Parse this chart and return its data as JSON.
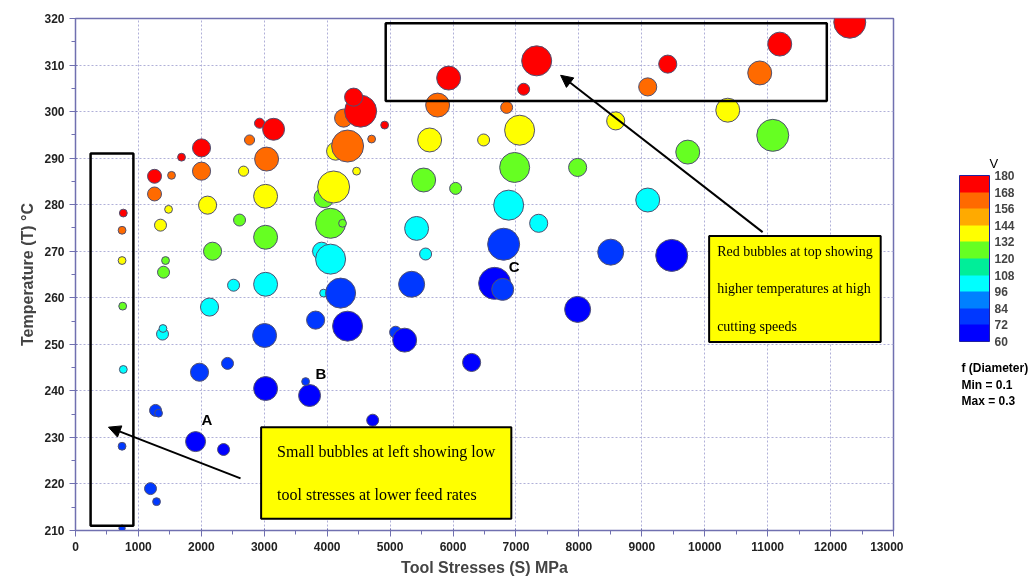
{
  "chart_data": {
    "type": "bubble",
    "xlabel": "Tool Stresses (S) MPa",
    "ylabel": "Temperature (T) °C",
    "clabel": "V",
    "xlim": [
      0,
      13000
    ],
    "ylim": [
      210,
      320
    ],
    "xticks": [
      0,
      1000,
      2000,
      3000,
      4000,
      5000,
      6000,
      7000,
      8000,
      9000,
      10000,
      11000,
      12000,
      13000
    ],
    "yticks": [
      210,
      220,
      230,
      240,
      250,
      260,
      270,
      280,
      290,
      300,
      310,
      320
    ],
    "clim": [
      60,
      180
    ],
    "cticks": [
      60,
      72,
      84,
      96,
      108,
      120,
      132,
      144,
      156,
      168,
      180
    ],
    "grid": true,
    "series": [
      {
        "x": [
          760,
          740,
          740,
          750,
          760,
          740,
          740,
          1256,
          1256,
          1351,
          1479,
          1526,
          1685,
          1431,
          1399,
          1383,
          1390,
          1272,
          1320,
          1192,
          1288,
          2003,
          2003,
          2099,
          2178,
          2130,
          1971,
          1908,
          2353,
          2671,
          2766,
          2607,
          2512,
          2416,
          2925,
          3148,
          3037,
          3021,
          3021,
          3021,
          3005,
          3021,
          3720,
          3657,
          3816,
          3911,
          3943,
          4054,
          4213,
          4324,
          3950,
          4054,
          4244,
          4102,
          4134,
          4324,
          4706,
          4467,
          4261,
          4531,
          4420,
          4913,
          4723,
          5628,
          5533,
          6041,
          5421,
          5564,
          5342,
          5087,
          5231,
          6295,
          5755,
          5930,
          6486,
          6852,
          7122,
          7329,
          7058,
          6979,
          6884,
          7361,
          6804,
          6661,
          6789,
          7980,
          9094,
          8585,
          7980,
          9094,
          8506,
          9475,
          9412,
          9730,
          10366,
          10874,
          11192,
          11081,
          12305
        ],
        "values": [
          278.2,
          274.5,
          268,
          258.2,
          244.6,
          228.1,
          210.5,
          286.1,
          282.3,
          275.6,
          279,
          286.3,
          290.2,
          268,
          265.5,
          252.2,
          253.4,
          235.8,
          235.2,
          219,
          216.2,
          292.2,
          287.2,
          279.9,
          270,
          258,
          244,
          229.1,
          227.4,
          287.2,
          293.9,
          276.7,
          262.7,
          245.9,
          297.5,
          296.2,
          289.8,
          281.8,
          273,
          262.9,
          251.9,
          240.5,
          239,
          242,
          255.2,
          270,
          261,
          268.3,
          261,
          253.9,
          281.5,
          276,
          276,
          283.8,
          291.5,
          292.6,
          294.1,
          287.2,
          298.6,
          300.1,
          303.1,
          297.1,
          233.7,
          293.9,
          285.3,
          283.5,
          274.9,
          269.4,
          262.9,
          252.6,
          250.9,
          246.1,
          301.4,
          307.2,
          293.9,
          300.9,
          304.8,
          310.9,
          296,
          288,
          279.9,
          276,
          271.5,
          263.1,
          261.8,
          257.5,
          305.3,
          298,
          288,
          281,
          269.8,
          269.1,
          310.2,
          291.3,
          300.3,
          308.3,
          314.5,
          294.9,
          319.2
        ],
        "sizes": [
          0.06,
          0.06,
          0.06,
          0.06,
          0.06,
          0.06,
          0.04,
          0.19,
          0.19,
          0.14,
          0.06,
          0.06,
          0.06,
          0.06,
          0.14,
          0.14,
          0.06,
          0.14,
          0.06,
          0.14,
          0.06,
          0.32,
          0.32,
          0.32,
          0.32,
          0.32,
          0.32,
          0.39,
          0.14,
          0.1,
          0.1,
          0.14,
          0.14,
          0.14,
          0.1,
          0.47,
          0.56,
          0.56,
          0.56,
          0.56,
          0.56,
          0.56,
          0.47,
          0.06,
          0.32,
          0.32,
          0.06,
          0.88,
          0.88,
          0.88,
          0.39,
          0.88,
          0.06,
          1,
          0.32,
          1,
          0.06,
          0.06,
          0.32,
          1,
          0.32,
          0.06,
          0.14,
          0.56,
          0.56,
          0.14,
          0.56,
          0.14,
          0.66,
          0.14,
          0.56,
          0.32,
          0.56,
          0.56,
          0.14,
          0.14,
          0.14,
          0.88,
          0.88,
          0.88,
          0.88,
          0.32,
          1,
          1,
          0.47,
          0.66,
          0.32,
          0.32,
          0.32,
          0.56,
          0.66,
          1,
          0.32,
          0.56,
          0.56,
          0.56,
          0.56,
          1,
          1
        ],
        "cvalues": [
          174,
          162,
          138,
          126,
          102,
          78,
          78,
          174,
          162,
          138,
          138,
          162,
          174,
          126,
          126,
          102,
          102,
          78,
          78,
          78,
          78,
          174,
          162,
          138,
          126,
          102,
          78,
          66,
          66,
          138,
          162,
          126,
          102,
          78,
          174,
          174,
          162,
          138,
          126,
          102,
          78,
          66,
          66,
          78,
          78,
          102,
          102,
          102,
          78,
          66,
          126,
          126,
          126,
          138,
          138,
          162,
          162,
          138,
          162,
          174,
          174,
          174,
          66,
          138,
          126,
          126,
          102,
          102,
          78,
          78,
          66,
          66,
          162,
          174,
          138,
          162,
          174,
          174,
          138,
          126,
          102,
          102,
          78,
          66,
          78,
          66,
          162,
          138,
          126,
          102,
          78,
          66,
          174,
          126,
          138,
          162,
          174,
          126,
          174
        ]
      }
    ],
    "annotations": [
      {
        "text": "A",
        "x": 1908,
        "y": 229.1
      },
      {
        "text": "B",
        "x": 3720,
        "y": 239
      },
      {
        "text": "C",
        "x": 6789,
        "y": 261.8
      },
      "Red bubbles at top showing higher temperatures at high cutting speeds",
      "Small bubbles at left showing low tool stresses at lower feed rates",
      "f (Diameter)",
      "Min = 0.1",
      "Max = 0.3"
    ]
  }
}
